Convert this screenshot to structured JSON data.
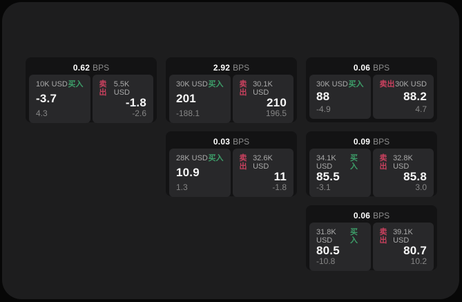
{
  "labels": {
    "bps": "BPS",
    "buy": "买入",
    "sell": "卖出"
  },
  "colors": {
    "page_bg": "#070707",
    "panel_bg": "#1d1d1e",
    "card_bg": "#131314",
    "tile_bg": "#28282a",
    "buy_green": "#3d9e69",
    "sell_red": "#c9415e",
    "price_text": "#f7f7f7",
    "muted_text": "#868686"
  },
  "cards": [
    {
      "bps": "0.62",
      "buy": {
        "size": "10K USD",
        "price": "-3.7",
        "delta": "4.3"
      },
      "sell": {
        "size": "5.5K USD",
        "price": "-1.8",
        "delta": "-2.6"
      }
    },
    {
      "bps": "2.92",
      "buy": {
        "size": "30K USD",
        "price": "201",
        "delta": "-188.1"
      },
      "sell": {
        "size": "30.1K USD",
        "price": "210",
        "delta": "196.5"
      }
    },
    {
      "bps": "0.06",
      "buy": {
        "size": "30K USD",
        "price": "88",
        "delta": "-4.9"
      },
      "sell": {
        "size": "30K USD",
        "price": "88.2",
        "delta": "4.7"
      }
    },
    {
      "bps": "0.03",
      "buy": {
        "size": "28K USD",
        "price": "10.9",
        "delta": "1.3"
      },
      "sell": {
        "size": "32.6K USD",
        "price": "11",
        "delta": "-1.8"
      }
    },
    {
      "bps": "0.09",
      "buy": {
        "size": "34.1K USD",
        "price": "85.5",
        "delta": "-3.1"
      },
      "sell": {
        "size": "32.8K USD",
        "price": "85.8",
        "delta": "3.0"
      }
    },
    {
      "bps": "0.06",
      "buy": {
        "size": "31.8K USD",
        "price": "80.5",
        "delta": "-10.8"
      },
      "sell": {
        "size": "39.1K USD",
        "price": "80.7",
        "delta": "10.2"
      }
    }
  ]
}
